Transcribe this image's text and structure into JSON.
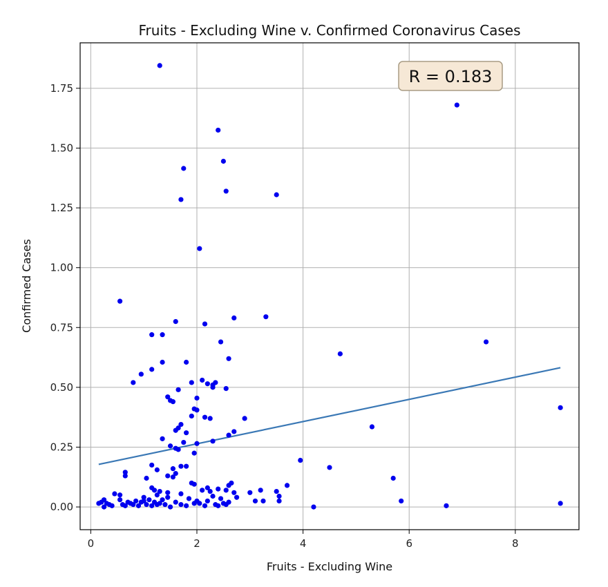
{
  "chart_data": {
    "type": "scatter",
    "title": "Fruits - Excluding Wine v. Confirmed Coronavirus Cases",
    "xlabel": "Fruits - Excluding Wine",
    "ylabel": "Confirmed Cases",
    "xlim": [
      -0.2,
      9.2
    ],
    "ylim": [
      -0.095,
      1.94
    ],
    "xticks": [
      0,
      2,
      4,
      6,
      8
    ],
    "yticks": [
      0.0,
      0.25,
      0.5,
      0.75,
      1.0,
      1.25,
      1.5,
      1.75
    ],
    "xtick_labels": [
      "0",
      "2",
      "4",
      "6",
      "8"
    ],
    "ytick_labels": [
      "0.00",
      "0.25",
      "0.50",
      "0.75",
      "1.00",
      "1.25",
      "1.50",
      "1.75"
    ],
    "grid": true,
    "annotation": "R = 0.183",
    "point_color": "#0000ee",
    "line_color": "#3a78b5",
    "annotation_bg": "#f6e8d6",
    "annotation_border": "#a89b83",
    "trendline": {
      "x": [
        0.15,
        8.85
      ],
      "y": [
        0.178,
        0.582
      ]
    },
    "points": [
      [
        1.3,
        1.845
      ],
      [
        6.9,
        1.68
      ],
      [
        2.4,
        1.575
      ],
      [
        2.5,
        1.445
      ],
      [
        1.75,
        1.415
      ],
      [
        2.55,
        1.32
      ],
      [
        3.5,
        1.305
      ],
      [
        1.7,
        1.285
      ],
      [
        2.05,
        1.08
      ],
      [
        0.55,
        0.86
      ],
      [
        3.3,
        0.795
      ],
      [
        2.7,
        0.79
      ],
      [
        1.6,
        0.775
      ],
      [
        2.15,
        0.765
      ],
      [
        1.15,
        0.72
      ],
      [
        1.35,
        0.72
      ],
      [
        2.45,
        0.69
      ],
      [
        7.45,
        0.69
      ],
      [
        4.7,
        0.64
      ],
      [
        2.6,
        0.62
      ],
      [
        1.35,
        0.605
      ],
      [
        1.8,
        0.605
      ],
      [
        1.15,
        0.575
      ],
      [
        0.95,
        0.555
      ],
      [
        0.8,
        0.52
      ],
      [
        1.9,
        0.52
      ],
      [
        2.1,
        0.53
      ],
      [
        2.2,
        0.515
      ],
      [
        2.3,
        0.51
      ],
      [
        2.35,
        0.52
      ],
      [
        2.3,
        0.5
      ],
      [
        2.55,
        0.495
      ],
      [
        1.65,
        0.49
      ],
      [
        1.45,
        0.46
      ],
      [
        1.5,
        0.445
      ],
      [
        1.55,
        0.44
      ],
      [
        2.0,
        0.455
      ],
      [
        1.95,
        0.41
      ],
      [
        2.0,
        0.405
      ],
      [
        8.85,
        0.415
      ],
      [
        1.9,
        0.38
      ],
      [
        2.15,
        0.375
      ],
      [
        2.25,
        0.37
      ],
      [
        2.9,
        0.37
      ],
      [
        1.7,
        0.345
      ],
      [
        1.65,
        0.33
      ],
      [
        5.3,
        0.335
      ],
      [
        1.6,
        0.32
      ],
      [
        2.7,
        0.315
      ],
      [
        1.8,
        0.31
      ],
      [
        2.6,
        0.3
      ],
      [
        1.35,
        0.285
      ],
      [
        1.75,
        0.27
      ],
      [
        2.3,
        0.275
      ],
      [
        2.0,
        0.265
      ],
      [
        1.5,
        0.255
      ],
      [
        1.6,
        0.245
      ],
      [
        1.65,
        0.24
      ],
      [
        1.95,
        0.225
      ],
      [
        3.95,
        0.195
      ],
      [
        1.15,
        0.175
      ],
      [
        1.7,
        0.17
      ],
      [
        1.8,
        0.17
      ],
      [
        4.5,
        0.165
      ],
      [
        1.55,
        0.16
      ],
      [
        1.25,
        0.155
      ],
      [
        1.6,
        0.14
      ],
      [
        0.65,
        0.145
      ],
      [
        0.65,
        0.13
      ],
      [
        1.45,
        0.13
      ],
      [
        1.55,
        0.125
      ],
      [
        1.05,
        0.12
      ],
      [
        5.7,
        0.12
      ],
      [
        1.9,
        0.1
      ],
      [
        2.65,
        0.1
      ],
      [
        1.95,
        0.095
      ],
      [
        2.1,
        0.07
      ],
      [
        2.6,
        0.09
      ],
      [
        3.7,
        0.09
      ],
      [
        1.15,
        0.08
      ],
      [
        1.2,
        0.07
      ],
      [
        2.2,
        0.08
      ],
      [
        2.4,
        0.075
      ],
      [
        2.25,
        0.065
      ],
      [
        2.55,
        0.07
      ],
      [
        2.7,
        0.06
      ],
      [
        3.0,
        0.06
      ],
      [
        3.2,
        0.07
      ],
      [
        3.5,
        0.065
      ],
      [
        1.45,
        0.06
      ],
      [
        1.3,
        0.065
      ],
      [
        0.45,
        0.055
      ],
      [
        1.7,
        0.055
      ],
      [
        0.55,
        0.05
      ],
      [
        1.25,
        0.05
      ],
      [
        3.55,
        0.045
      ],
      [
        2.3,
        0.045
      ],
      [
        1.0,
        0.04
      ],
      [
        1.45,
        0.04
      ],
      [
        1.85,
        0.035
      ],
      [
        2.45,
        0.035
      ],
      [
        0.25,
        0.03
      ],
      [
        0.55,
        0.03
      ],
      [
        1.1,
        0.03
      ],
      [
        1.35,
        0.03
      ],
      [
        3.1,
        0.025
      ],
      [
        3.25,
        0.025
      ],
      [
        3.55,
        0.025
      ],
      [
        5.85,
        0.025
      ],
      [
        0.85,
        0.025
      ],
      [
        1.0,
        0.025
      ],
      [
        2.0,
        0.025
      ],
      [
        2.2,
        0.025
      ],
      [
        0.2,
        0.02
      ],
      [
        0.95,
        0.02
      ],
      [
        1.2,
        0.02
      ],
      [
        1.6,
        0.02
      ],
      [
        2.6,
        0.02
      ],
      [
        0.15,
        0.015
      ],
      [
        0.3,
        0.015
      ],
      [
        0.75,
        0.015
      ],
      [
        1.3,
        0.015
      ],
      [
        1.95,
        0.015
      ],
      [
        2.05,
        0.015
      ],
      [
        2.5,
        0.015
      ],
      [
        8.85,
        0.015
      ],
      [
        0.35,
        0.01
      ],
      [
        0.6,
        0.01
      ],
      [
        0.8,
        0.01
      ],
      [
        1.05,
        0.01
      ],
      [
        1.25,
        0.01
      ],
      [
        1.4,
        0.01
      ],
      [
        1.7,
        0.01
      ],
      [
        2.35,
        0.01
      ],
      [
        2.55,
        0.01
      ],
      [
        0.65,
        0.005
      ],
      [
        0.9,
        0.005
      ],
      [
        1.15,
        0.005
      ],
      [
        1.8,
        0.005
      ],
      [
        2.15,
        0.005
      ],
      [
        6.7,
        0.005
      ],
      [
        0.25,
        0.0
      ],
      [
        4.2,
        0.0
      ],
      [
        0.4,
        0.005
      ],
      [
        0.7,
        0.02
      ],
      [
        1.5,
        0.0
      ],
      [
        2.4,
        0.005
      ],
      [
        2.75,
        0.04
      ]
    ]
  }
}
